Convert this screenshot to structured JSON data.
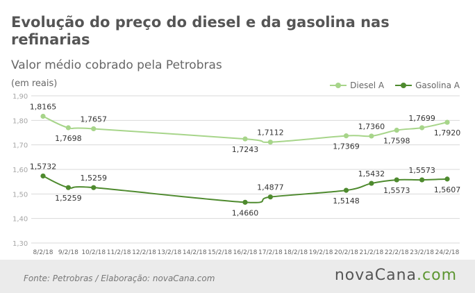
{
  "header": {
    "title": "Evolução do preço do diesel e da gasolina nas refinarias",
    "subtitle": "Valor médio cobrado pela Petrobras",
    "unit": "(em reais)"
  },
  "footer": {
    "source": "Fonte:  Petrobras  / Elaboração:  novaCana.com",
    "brand_main": "novaCana",
    "brand_suffix": ".com"
  },
  "colors": {
    "diesel": "#a7d58a",
    "gasolina": "#4e8a2e",
    "grid": "#d9d9d9",
    "axis_text": "#a6a6a6",
    "brand_accent": "#5d9632"
  },
  "chart_data": {
    "type": "line",
    "title": "Evolução do preço do diesel e da gasolina nas refinarias",
    "subtitle": "Valor médio cobrado pela Petrobras",
    "ylabel": "(em reais)",
    "ylim": [
      1.3,
      1.9
    ],
    "yticks": [
      "1,90",
      "1,80",
      "1,70",
      "1,60",
      "1,50",
      "1,40",
      "1,30"
    ],
    "grid": true,
    "legend_position": "top-right",
    "categories": [
      "8/2/18",
      "9/2/18",
      "10/2/18",
      "11/2/18",
      "12/2/18",
      "13/2/18",
      "14/2/18",
      "15/2/18",
      "16/2/18",
      "17/2/18",
      "18/2/18",
      "19/2/18",
      "20/2/18",
      "21/2/18",
      "22/2/18",
      "23/2/18",
      "24/2/18"
    ],
    "series": [
      {
        "name": "Diesel A",
        "color": "#a7d58a",
        "points": [
          {
            "x": "8/2/18",
            "y": 1.8165,
            "label": "1,8165",
            "label_side": "above"
          },
          {
            "x": "9/2/18",
            "y": 1.7698,
            "label": "1,7698",
            "label_side": "below"
          },
          {
            "x": "10/2/18",
            "y": 1.7657,
            "label": "1,7657",
            "label_side": "above"
          },
          {
            "x": "16/2/18",
            "y": 1.7243,
            "label": "1,7243",
            "label_side": "below"
          },
          {
            "x": "17/2/18",
            "y": 1.7112,
            "label": "1,7112",
            "label_side": "above"
          },
          {
            "x": "20/2/18",
            "y": 1.7369,
            "label": "1,7369",
            "label_side": "below"
          },
          {
            "x": "21/2/18",
            "y": 1.736,
            "label": "1,7360",
            "label_side": "above"
          },
          {
            "x": "22/2/18",
            "y": 1.7598,
            "label": "1,7598",
            "label_side": "below"
          },
          {
            "x": "23/2/18",
            "y": 1.7699,
            "label": "1,7699",
            "label_side": "above"
          },
          {
            "x": "24/2/18",
            "y": 1.792,
            "label": "1,7920",
            "label_side": "below"
          }
        ]
      },
      {
        "name": "Gasolina A",
        "color": "#4e8a2e",
        "points": [
          {
            "x": "8/2/18",
            "y": 1.5732,
            "label": "1,5732",
            "label_side": "above"
          },
          {
            "x": "9/2/18",
            "y": 1.5259,
            "label": "1,5259",
            "label_side": "below"
          },
          {
            "x": "10/2/18",
            "y": 1.5259,
            "label": "1,5259",
            "label_side": "above"
          },
          {
            "x": "16/2/18",
            "y": 1.466,
            "label": "1,4660",
            "label_side": "below"
          },
          {
            "x": "17/2/18",
            "y": 1.4877,
            "label": "1,4877",
            "label_side": "above"
          },
          {
            "x": "20/2/18",
            "y": 1.5148,
            "label": "1,5148",
            "label_side": "below"
          },
          {
            "x": "21/2/18",
            "y": 1.5432,
            "label": "1,5432",
            "label_side": "above"
          },
          {
            "x": "22/2/18",
            "y": 1.5573,
            "label": "1,5573",
            "label_side": "below"
          },
          {
            "x": "23/2/18",
            "y": 1.5573,
            "label": "1,5573",
            "label_side": "above"
          },
          {
            "x": "24/2/18",
            "y": 1.5607,
            "label": "1,5607",
            "label_side": "below"
          }
        ]
      }
    ]
  }
}
